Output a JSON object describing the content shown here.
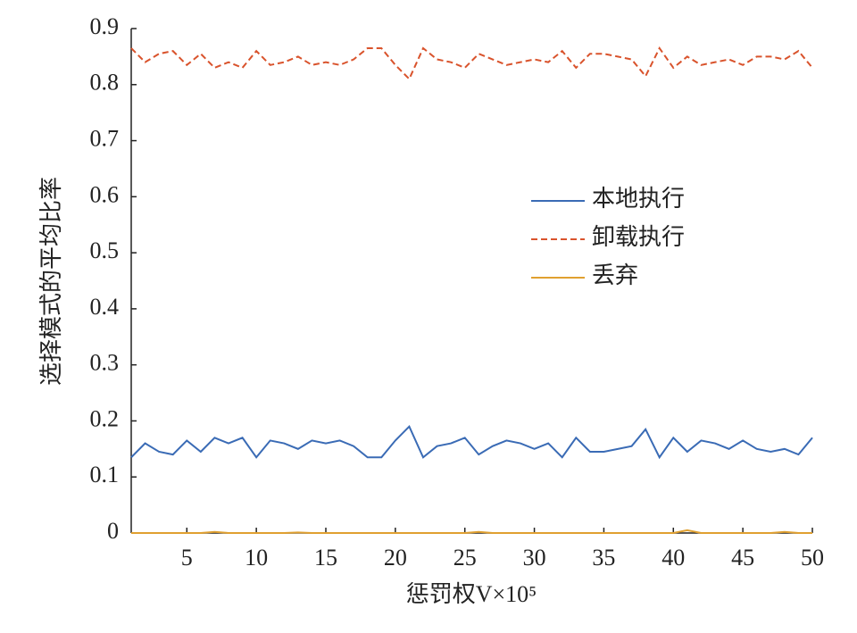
{
  "chart_data": {
    "type": "line",
    "x_label": "惩罚权V×10⁵",
    "y_label": "选择模式的平均比率",
    "x": [
      1,
      2,
      3,
      4,
      5,
      6,
      7,
      8,
      9,
      10,
      11,
      12,
      13,
      14,
      15,
      16,
      17,
      18,
      19,
      20,
      21,
      22,
      23,
      24,
      25,
      26,
      27,
      28,
      29,
      30,
      31,
      32,
      33,
      34,
      35,
      36,
      37,
      38,
      39,
      40,
      41,
      42,
      43,
      44,
      45,
      46,
      47,
      48,
      49,
      50
    ],
    "series": [
      {
        "name": "本地执行",
        "color": "#3a6bb5",
        "dash": "solid",
        "values": [
          0.135,
          0.16,
          0.145,
          0.14,
          0.165,
          0.145,
          0.17,
          0.16,
          0.17,
          0.135,
          0.165,
          0.16,
          0.15,
          0.165,
          0.16,
          0.165,
          0.155,
          0.135,
          0.135,
          0.165,
          0.19,
          0.135,
          0.155,
          0.16,
          0.17,
          0.14,
          0.155,
          0.165,
          0.16,
          0.15,
          0.16,
          0.135,
          0.17,
          0.145,
          0.145,
          0.15,
          0.155,
          0.185,
          0.135,
          0.17,
          0.145,
          0.165,
          0.16,
          0.15,
          0.165,
          0.15,
          0.145,
          0.15,
          0.14,
          0.17
        ]
      },
      {
        "name": "卸载执行",
        "color": "#d9532c",
        "dash": "dashed",
        "values": [
          0.865,
          0.84,
          0.855,
          0.86,
          0.835,
          0.855,
          0.83,
          0.84,
          0.83,
          0.86,
          0.835,
          0.84,
          0.85,
          0.835,
          0.84,
          0.835,
          0.845,
          0.865,
          0.865,
          0.835,
          0.81,
          0.865,
          0.845,
          0.84,
          0.83,
          0.855,
          0.845,
          0.835,
          0.84,
          0.845,
          0.84,
          0.86,
          0.83,
          0.855,
          0.855,
          0.85,
          0.845,
          0.815,
          0.865,
          0.83,
          0.85,
          0.835,
          0.84,
          0.845,
          0.835,
          0.85,
          0.85,
          0.845,
          0.86,
          0.83
        ]
      },
      {
        "name": "丢弃",
        "color": "#e0a030",
        "dash": "solid",
        "values": [
          0,
          0,
          0,
          0,
          0,
          0,
          0.002,
          0,
          0,
          0,
          0,
          0,
          0.001,
          0,
          0,
          0,
          0,
          0,
          0,
          0,
          0,
          0,
          0,
          0,
          0,
          0.002,
          0,
          0,
          0,
          0,
          0,
          0,
          0,
          0,
          0,
          0,
          0,
          0,
          0,
          0,
          0.005,
          0,
          0,
          0,
          0,
          0,
          0,
          0.002,
          0,
          0
        ]
      }
    ],
    "xlim": [
      1,
      50
    ],
    "xticks": [
      5,
      10,
      15,
      20,
      25,
      30,
      35,
      40,
      45,
      50
    ],
    "ylim": [
      0,
      0.9
    ],
    "yticks": [
      0,
      0.1,
      0.2,
      0.3,
      0.4,
      0.5,
      0.6,
      0.7,
      0.8,
      0.9
    ],
    "grid": false
  }
}
